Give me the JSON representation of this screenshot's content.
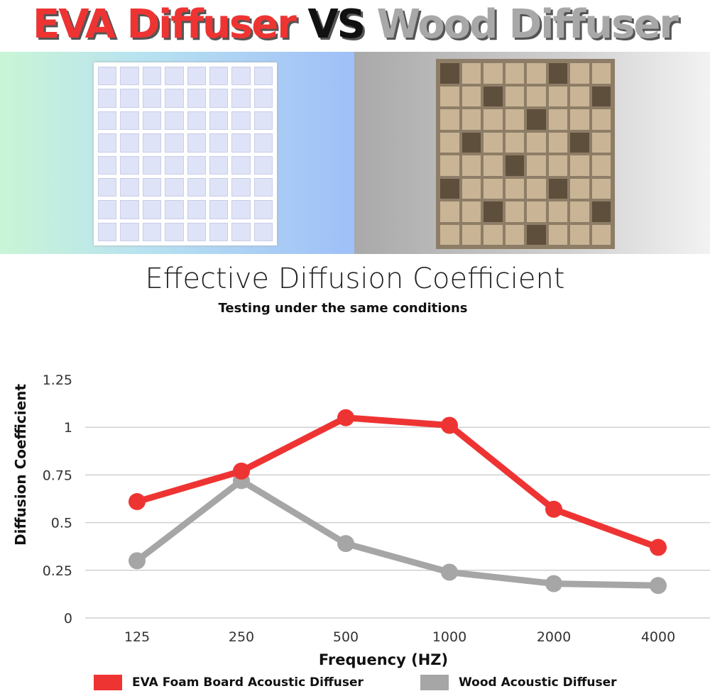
{
  "headline": {
    "part1": "EVA Diffuser",
    "part2": "VS",
    "part3": "Wood Diffuser"
  },
  "colors": {
    "eva": "#ee3433",
    "wood": "#a6a6a6"
  },
  "chart_data": {
    "type": "line",
    "title": "Effective Diffusion Coefficient",
    "subtitle": "Testing under the same conditions",
    "xlabel": "Frequency (HZ)",
    "ylabel": "Diffusion Coefficient",
    "categories": [
      "125",
      "250",
      "500",
      "1000",
      "2000",
      "4000"
    ],
    "yticks": [
      "0",
      "0.25",
      "0.5",
      "0.75",
      "1",
      "1.25"
    ],
    "ylim": [
      0,
      1.25
    ],
    "grid": true,
    "legend_position": "bottom",
    "series": [
      {
        "name": "EVA Foam Board Acoustic Diffuser",
        "color": "#ee3433",
        "values": [
          0.61,
          0.77,
          1.05,
          1.01,
          0.57,
          0.37
        ]
      },
      {
        "name": "Wood Acoustic Diffuser",
        "color": "#a6a6a6",
        "values": [
          0.3,
          0.72,
          0.39,
          0.24,
          0.18,
          0.17
        ]
      }
    ]
  }
}
